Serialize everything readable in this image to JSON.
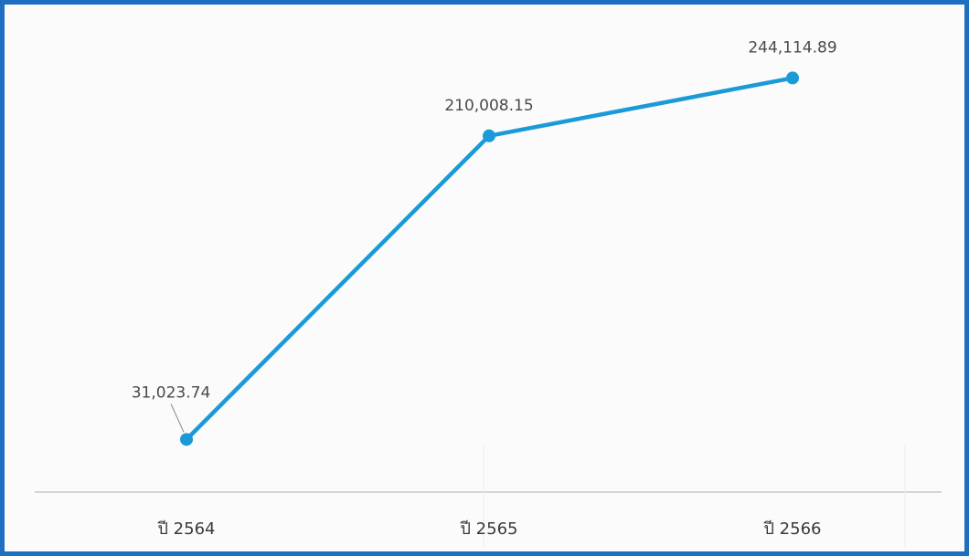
{
  "chart_data": {
    "type": "line",
    "title": "",
    "xlabel": "",
    "ylabel": "",
    "categories": [
      "ปี 2564",
      "ปี 2565",
      "ปี 2566"
    ],
    "series": [
      {
        "values": [
          31023.74,
          210008.15,
          244114.89
        ],
        "data_labels": [
          "31,023.74",
          "210,008.15",
          "244,114.89"
        ],
        "color": "#1b9ad8"
      }
    ],
    "ylim": [
      0,
      250000
    ],
    "grid": false,
    "legend": "none",
    "frame_color": "#1f6fc0"
  }
}
